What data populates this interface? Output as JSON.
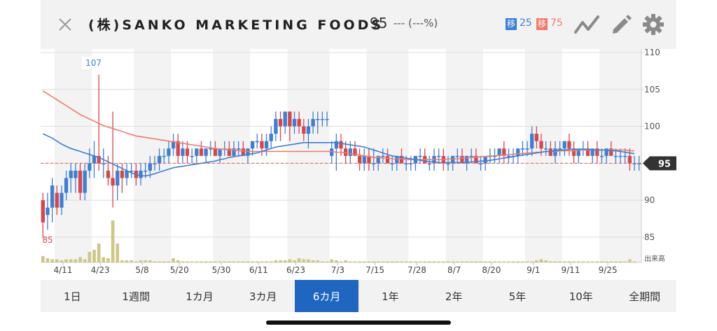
{
  "header": {
    "title": "(株)SANKO MARKETING FOODS",
    "price": "95",
    "change": "--- (---%)",
    "ma_short_label": "移",
    "ma_short_value": "25",
    "ma_long_label": "移",
    "ma_long_value": "75",
    "ma_short_color": "#3b7fd6",
    "ma_long_color": "#f07b6a",
    "icons": [
      "close-icon",
      "line-chart-icon",
      "pencil-icon",
      "gear-icon"
    ]
  },
  "tabs": [
    {
      "label": "1日",
      "active": false
    },
    {
      "label": "1週間",
      "active": false
    },
    {
      "label": "1カ月",
      "active": false
    },
    {
      "label": "3カ月",
      "active": false
    },
    {
      "label": "6カ月",
      "active": true
    },
    {
      "label": "1年",
      "active": false
    },
    {
      "label": "2年",
      "active": false
    },
    {
      "label": "5年",
      "active": false
    },
    {
      "label": "10年",
      "active": false
    },
    {
      "label": "全期間",
      "active": false
    }
  ],
  "chart_data": {
    "type": "candlestick",
    "title": "",
    "ylim": [
      83,
      110
    ],
    "y_ticks": [
      85,
      90,
      95,
      100,
      105,
      110
    ],
    "x_tick_labels": [
      "4/11",
      "4/23",
      "5/8",
      "5/20",
      "5/30",
      "6/11",
      "6/23",
      "7/3",
      "7/15",
      "7/28",
      "8/7",
      "8/20",
      "9/1",
      "9/11",
      "9/25"
    ],
    "x_tick_index": [
      3,
      11,
      20,
      28,
      37,
      45,
      53,
      62,
      70,
      79,
      87,
      95,
      104,
      112,
      120
    ],
    "current_price": 95,
    "current_price_label": "95",
    "high_annotation": {
      "label": "107",
      "value": 107,
      "index": 12
    },
    "low_annotation": {
      "label": "85",
      "value": 85,
      "index": 0
    },
    "volume_label": "出来高",
    "up_color": "#3b7fd6",
    "down_color": "#d9464a",
    "volume_color": "#cfc786",
    "ohlc": [
      [
        90,
        91,
        85,
        87
      ],
      [
        88,
        91,
        86,
        89
      ],
      [
        89,
        93,
        87,
        92
      ],
      [
        91,
        92,
        88,
        89
      ],
      [
        89,
        92,
        88,
        91
      ],
      [
        91,
        94,
        90,
        93
      ],
      [
        93,
        95,
        91,
        94
      ],
      [
        93,
        95,
        91,
        94
      ],
      [
        94,
        95,
        90,
        91
      ],
      [
        91,
        95,
        90,
        94
      ],
      [
        94,
        97,
        93,
        95
      ],
      [
        95,
        98,
        93,
        96
      ],
      [
        96,
        107,
        94,
        95
      ],
      [
        95,
        97,
        93,
        95
      ],
      [
        94,
        96,
        92,
        93
      ],
      [
        93,
        102,
        89,
        92
      ],
      [
        92,
        95,
        90,
        94
      ],
      [
        94,
        95,
        91,
        93
      ],
      [
        93,
        95,
        92,
        94
      ],
      [
        94,
        95,
        93,
        94
      ],
      [
        94,
        95,
        92,
        93
      ],
      [
        93,
        95,
        92,
        94
      ],
      [
        94,
        95,
        93,
        94
      ],
      [
        94,
        96,
        93,
        95
      ],
      [
        95,
        96,
        94,
        95
      ],
      [
        95,
        97,
        94,
        96
      ],
      [
        96,
        97,
        95,
        96
      ],
      [
        96,
        98,
        95,
        97
      ],
      [
        97,
        99,
        96,
        98
      ],
      [
        98,
        99,
        95,
        96
      ],
      [
        96,
        98,
        95,
        97
      ],
      [
        97,
        98,
        95,
        96
      ],
      [
        96,
        97,
        95,
        96
      ],
      [
        96,
        97,
        95,
        97
      ],
      [
        97,
        98,
        96,
        96
      ],
      [
        96,
        97,
        95,
        97
      ],
      [
        97,
        98,
        96,
        97
      ],
      [
        97,
        98,
        96,
        96
      ],
      [
        96,
        97,
        95,
        97
      ],
      [
        97,
        98,
        96,
        97
      ],
      [
        97,
        98,
        96,
        96
      ],
      [
        96,
        98,
        96,
        97
      ],
      [
        97,
        98,
        96,
        97
      ],
      [
        97,
        98,
        96,
        96
      ],
      [
        96,
        97,
        95,
        97
      ],
      [
        97,
        98,
        96,
        98
      ],
      [
        98,
        99,
        97,
        98
      ],
      [
        98,
        99,
        96,
        97
      ],
      [
        97,
        99,
        96,
        98
      ],
      [
        98,
        100,
        97,
        99
      ],
      [
        99,
        102,
        98,
        101
      ],
      [
        101,
        102,
        98,
        100
      ],
      [
        100,
        102,
        99,
        102
      ],
      [
        102,
        102,
        98,
        100
      ],
      [
        100,
        102,
        99,
        101
      ],
      [
        101,
        102,
        99,
        100
      ],
      [
        100,
        101,
        98,
        99
      ],
      [
        99,
        101,
        97,
        100
      ],
      [
        100,
        102,
        99,
        101
      ],
      [
        101,
        102,
        99,
        101
      ],
      [
        101,
        102,
        100,
        101
      ],
      [
        101,
        102,
        100,
        101
      ],
      [
        96,
        98,
        95,
        97
      ],
      [
        97,
        99,
        94,
        98
      ],
      [
        98,
        99,
        96,
        97
      ],
      [
        97,
        98,
        95,
        96
      ],
      [
        96,
        98,
        95,
        97
      ],
      [
        97,
        98,
        96,
        96
      ],
      [
        96,
        97,
        94,
        95
      ],
      [
        95,
        97,
        94,
        96
      ],
      [
        96,
        97,
        94,
        95
      ],
      [
        95,
        97,
        94,
        95
      ],
      [
        95,
        96,
        94,
        96
      ],
      [
        96,
        97,
        95,
        96
      ],
      [
        96,
        97,
        95,
        95
      ],
      [
        95,
        96,
        94,
        95
      ],
      [
        95,
        96,
        94,
        96
      ],
      [
        96,
        97,
        95,
        95
      ],
      [
        95,
        96,
        94,
        95
      ],
      [
        95,
        96,
        94,
        95
      ],
      [
        95,
        96,
        94,
        96
      ],
      [
        96,
        97,
        95,
        96
      ],
      [
        96,
        97,
        95,
        95
      ],
      [
        95,
        96,
        94,
        95
      ],
      [
        95,
        97,
        94,
        96
      ],
      [
        96,
        97,
        95,
        96
      ],
      [
        96,
        97,
        94,
        95
      ],
      [
        95,
        96,
        94,
        95
      ],
      [
        95,
        96,
        94,
        96
      ],
      [
        96,
        97,
        95,
        96
      ],
      [
        96,
        97,
        95,
        95
      ],
      [
        95,
        96,
        94,
        96
      ],
      [
        96,
        97,
        95,
        96
      ],
      [
        96,
        97,
        95,
        95
      ],
      [
        95,
        96,
        94,
        95
      ],
      [
        95,
        96,
        94,
        96
      ],
      [
        96,
        97,
        95,
        96
      ],
      [
        96,
        97,
        95,
        96
      ],
      [
        96,
        97,
        95,
        97
      ],
      [
        97,
        98,
        95,
        96
      ],
      [
        96,
        97,
        95,
        96
      ],
      [
        96,
        97,
        95,
        96
      ],
      [
        96,
        97,
        95,
        97
      ],
      [
        97,
        98,
        96,
        97
      ],
      [
        97,
        98,
        96,
        97
      ],
      [
        97,
        100,
        96,
        99
      ],
      [
        99,
        100,
        97,
        98
      ],
      [
        98,
        99,
        96,
        97
      ],
      [
        97,
        98,
        96,
        97
      ],
      [
        97,
        98,
        96,
        96
      ],
      [
        96,
        98,
        95,
        97
      ],
      [
        97,
        98,
        96,
        97
      ],
      [
        97,
        98,
        96,
        98
      ],
      [
        98,
        99,
        96,
        97
      ],
      [
        97,
        98,
        95,
        96
      ],
      [
        96,
        97,
        95,
        97
      ],
      [
        97,
        98,
        96,
        97
      ],
      [
        97,
        98,
        96,
        96
      ],
      [
        96,
        97,
        95,
        97
      ],
      [
        97,
        98,
        95,
        96
      ],
      [
        96,
        97,
        95,
        96
      ],
      [
        96,
        97,
        95,
        97
      ],
      [
        97,
        98,
        96,
        96
      ],
      [
        96,
        97,
        95,
        96
      ],
      [
        96,
        97,
        95,
        96
      ],
      [
        96,
        97,
        95,
        96
      ],
      [
        96,
        97,
        94,
        95
      ],
      [
        95,
        96,
        94,
        95
      ],
      [
        95,
        96,
        94,
        95
      ]
    ],
    "ma25": [
      99.0,
      98.7,
      98.4,
      98.0,
      97.6,
      97.3,
      97.0,
      96.8,
      96.6,
      96.4,
      96.2,
      96.0,
      95.8,
      95.5,
      95.2,
      94.9,
      94.6,
      94.3,
      94.0,
      93.7,
      93.5,
      93.3,
      93.3,
      93.4,
      93.6,
      93.8,
      94.0,
      94.2,
      94.4,
      94.5,
      94.6,
      94.7,
      94.8,
      94.9,
      95.0,
      95.1,
      95.2,
      95.3,
      95.5,
      95.6,
      95.8,
      95.9,
      96.0,
      96.1,
      96.2,
      96.3,
      96.4,
      96.6,
      96.8,
      97.0,
      97.2,
      97.3,
      97.4,
      97.5,
      97.6,
      97.7,
      97.8,
      97.8,
      97.8,
      97.8,
      97.8,
      97.8,
      97.8,
      97.8,
      97.7,
      97.6,
      97.5,
      97.4,
      97.3,
      97.2,
      97.0,
      96.8,
      96.6,
      96.4,
      96.2,
      96.0,
      95.9,
      95.8,
      95.7,
      95.6,
      95.5,
      95.4,
      95.3,
      95.2,
      95.2,
      95.1,
      95.1,
      95.1,
      95.1,
      95.1,
      95.1,
      95.1,
      95.2,
      95.2,
      95.3,
      95.3,
      95.4,
      95.5,
      95.6,
      95.7,
      95.8,
      95.9,
      96.0,
      96.1,
      96.2,
      96.3,
      96.4,
      96.5,
      96.6,
      96.6,
      96.7,
      96.8,
      96.8,
      96.9,
      96.9,
      96.9,
      96.9,
      96.9,
      96.8,
      96.8,
      96.8,
      96.8,
      96.7,
      96.7,
      96.6,
      96.5,
      96.4,
      96.3
    ],
    "ma75": [
      104.8,
      104.4,
      104.0,
      103.6,
      103.2,
      102.8,
      102.4,
      102.0,
      101.6,
      101.3,
      101.0,
      100.7,
      100.4,
      100.1,
      99.9,
      99.7,
      99.5,
      99.3,
      99.1,
      98.9,
      98.7,
      98.6,
      98.5,
      98.4,
      98.3,
      98.2,
      98.1,
      98.0,
      97.9,
      97.8,
      97.7,
      97.6,
      97.5,
      97.4,
      97.3,
      97.2,
      97.1,
      97.0,
      96.9,
      96.9,
      96.8,
      96.8,
      96.7,
      96.7,
      96.6,
      96.6,
      96.6,
      96.6,
      96.6,
      96.6,
      96.6,
      96.6,
      96.6,
      96.6,
      96.6,
      96.6,
      96.6,
      96.6,
      96.6,
      96.6,
      96.6,
      96.6,
      96.6,
      96.5,
      96.5,
      96.4,
      96.3,
      96.2,
      96.1,
      96.0,
      95.9,
      95.8,
      95.8,
      95.7,
      95.7,
      95.6,
      95.6,
      95.6,
      95.5,
      95.5,
      95.5,
      95.5,
      95.5,
      95.5,
      95.5,
      95.5,
      95.5,
      95.6,
      95.6,
      95.6,
      95.7,
      95.7,
      95.8,
      95.8,
      95.9,
      95.9,
      96.0,
      96.0,
      96.1,
      96.1,
      96.2,
      96.2,
      96.3,
      96.3,
      96.4,
      96.4,
      96.5,
      96.5,
      96.6,
      96.6,
      96.6,
      96.7,
      96.7,
      96.7,
      96.7,
      96.8,
      96.8,
      96.8,
      96.8,
      96.8,
      96.8,
      96.8,
      96.8,
      96.8,
      96.8,
      96.8,
      96.7,
      96.7
    ],
    "volume": [
      6,
      4,
      3,
      3,
      2,
      3,
      3,
      3,
      5,
      3,
      10,
      12,
      18,
      5,
      4,
      40,
      18,
      2,
      2,
      2,
      1,
      2,
      2,
      2,
      1,
      1,
      1,
      1,
      4,
      2,
      1,
      1,
      1,
      1,
      1,
      1,
      1,
      1,
      1,
      1,
      1,
      1,
      1,
      1,
      1,
      1,
      1,
      1,
      1,
      1,
      2,
      2,
      2,
      3,
      2,
      4,
      3,
      3,
      2,
      2,
      1,
      1,
      3,
      2,
      1,
      2,
      1,
      1,
      1,
      1,
      1,
      1,
      1,
      1,
      1,
      1,
      1,
      1,
      1,
      1,
      1,
      1,
      1,
      1,
      1,
      1,
      1,
      1,
      1,
      1,
      1,
      1,
      1,
      1,
      1,
      1,
      1,
      1,
      1,
      1,
      1,
      1,
      1,
      1,
      1,
      1,
      2,
      3,
      2,
      1,
      1,
      1,
      1,
      1,
      1,
      1,
      1,
      1,
      1,
      1,
      1,
      1,
      1,
      1,
      1,
      1,
      3,
      1
    ]
  }
}
